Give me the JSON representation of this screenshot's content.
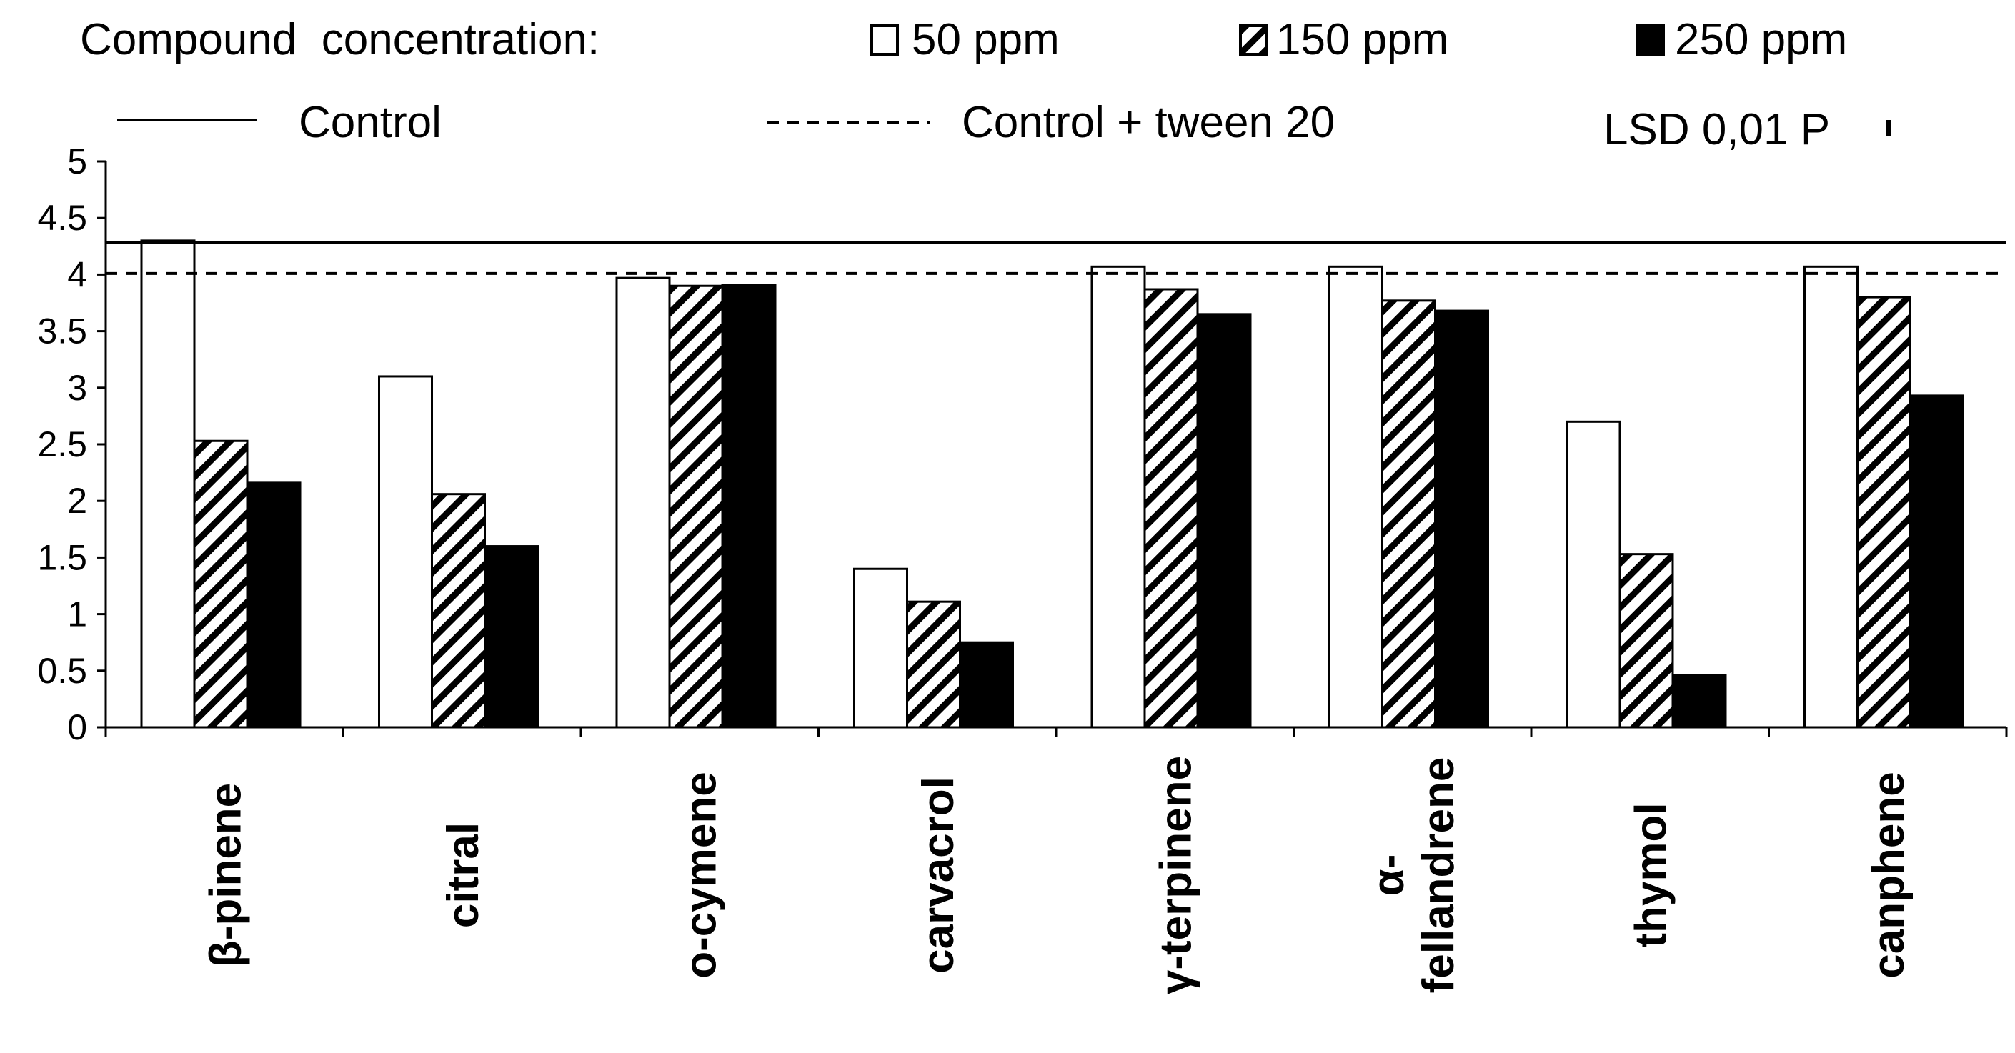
{
  "legend": {
    "heading": "Compound  concentration:",
    "ppm50": "50 ppm",
    "ppm150": "150 ppm",
    "ppm250": "250 ppm",
    "control": "Control",
    "control_tween": "Control + tween 20",
    "lsd": "LSD 0,01 P"
  },
  "chart_data": {
    "type": "bar",
    "categories": [
      "β-pinene",
      "citral",
      "o-cymene",
      "carvacrol",
      "γ-terpinene",
      "α-fellandrene",
      "thymol",
      "canphene"
    ],
    "category_lines": [
      [
        "β-pinene"
      ],
      [
        "citral"
      ],
      [
        "o-cymene"
      ],
      [
        "carvacrol"
      ],
      [
        "γ-terpinene"
      ],
      [
        "α-",
        "fellandrene"
      ],
      [
        "thymol"
      ],
      [
        "canphene"
      ]
    ],
    "series": [
      {
        "name": "50 ppm",
        "fill": "white",
        "values": [
          4.3,
          3.1,
          3.97,
          1.4,
          4.07,
          4.07,
          2.7,
          4.07
        ]
      },
      {
        "name": "150 ppm",
        "fill": "hatch",
        "values": [
          2.53,
          2.06,
          3.9,
          1.11,
          3.87,
          3.77,
          1.53,
          3.8
        ]
      },
      {
        "name": "250 ppm",
        "fill": "black",
        "values": [
          2.16,
          1.6,
          3.91,
          0.75,
          3.65,
          3.68,
          0.46,
          2.93
        ]
      }
    ],
    "reference_lines": [
      {
        "name": "Control",
        "value": 4.28,
        "style": "solid"
      },
      {
        "name": "Control + tween 20",
        "value": 4.01,
        "style": "dashed"
      }
    ],
    "lsd": {
      "label": "LSD 0,01 P",
      "value": 0.1
    },
    "ylim": [
      0,
      5
    ],
    "yticks": [
      "0",
      "0.5",
      "1",
      "1.5",
      "2",
      "2.5",
      "3",
      "3.5",
      "4",
      "4.5",
      "5"
    ],
    "colors": {
      "bar_stroke": "#000000",
      "white": "#ffffff",
      "black": "#000000"
    }
  }
}
